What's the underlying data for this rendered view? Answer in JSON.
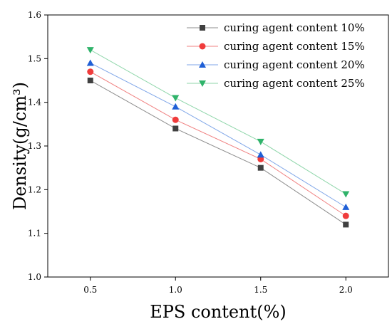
{
  "chart_data": {
    "type": "line",
    "title": "",
    "xlabel": "EPS content(%)",
    "ylabel": "Density(g/cm³)",
    "x": [
      0.5,
      1.0,
      1.5,
      2.0
    ],
    "x_tick_labels": [
      "0.5",
      "1.0",
      "1.5",
      "2.0"
    ],
    "xlim": [
      0.25,
      2.25
    ],
    "ylim": [
      1.0,
      1.6
    ],
    "y_ticks": [
      1.0,
      1.1,
      1.2,
      1.3,
      1.4,
      1.5,
      1.6
    ],
    "y_tick_labels": [
      "1.0",
      "1.1",
      "1.2",
      "1.3",
      "1.4",
      "1.5",
      "1.6"
    ],
    "grid": false,
    "legend_position": "top-right",
    "series": [
      {
        "name": "curing agent content 10%",
        "values": [
          1.45,
          1.34,
          1.25,
          1.12
        ],
        "color": "#404040",
        "line_color": "#8c8c8c",
        "marker": "square"
      },
      {
        "name": "curing agent content 15%",
        "values": [
          1.47,
          1.36,
          1.27,
          1.14
        ],
        "color": "#f03c3c",
        "line_color": "#f08080",
        "marker": "circle"
      },
      {
        "name": "curing agent content 20%",
        "values": [
          1.49,
          1.39,
          1.28,
          1.16
        ],
        "color": "#1f5fd6",
        "line_color": "#7fa6e8",
        "marker": "triangle-up"
      },
      {
        "name": "curing agent content 25%",
        "values": [
          1.52,
          1.41,
          1.31,
          1.19
        ],
        "color": "#2fb36a",
        "line_color": "#8fd6aa",
        "marker": "triangle-down"
      }
    ]
  }
}
